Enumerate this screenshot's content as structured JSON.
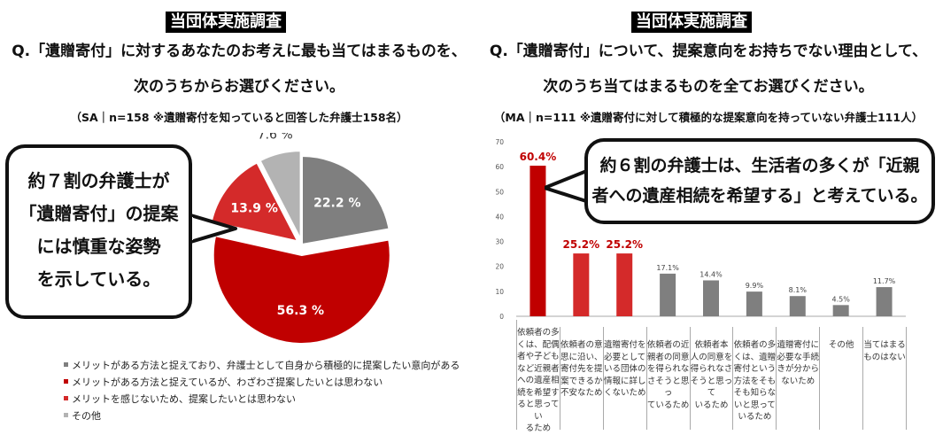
{
  "left": {
    "tag": "当団体実施調査",
    "question_line1": "Q.「遺贈寄付」に対するあなたのお考えに最も当てはまるものを、",
    "question_line2": "次のうちからお選びください。",
    "note": "（SA｜n=158 ※遺贈寄付を知っていると回答した弁護士158名）",
    "callout_lines": [
      "約７割の弁護士が",
      "「遺贈寄付」の提案",
      "には慎重な姿勢",
      "を示している。"
    ],
    "legend": [
      {
        "label": "メリットがある方法と捉えており、弁護士として自身から積極的に提案したい意向がある",
        "color": "#7f7f7f"
      },
      {
        "label": "メリットがある方法と捉えているが、わざわざ提案したいとは思わない",
        "color": "#c00000"
      },
      {
        "label": "メリットを感じないため、提案したいとは思わない",
        "color": "#d42a2a"
      },
      {
        "label": "その他",
        "color": "#b3b3b3"
      }
    ]
  },
  "right": {
    "tag": "当団体実施調査",
    "question_line1": "Q.「遺贈寄付」について、提案意向をお持ちでない理由として、",
    "question_line2": "次のうち当てはまるものを全てお選びください。",
    "note": "（MA｜n=111 ※遺贈寄付に対して積極的な提案意向を持っていない弁護士111人）",
    "callout_lines": [
      "約６割の弁護士は、生活者の多くが「近親",
      "者への遺産相続を希望する」と考えている。"
    ]
  },
  "chart_data": [
    {
      "type": "pie",
      "slices": [
        {
          "label": "メリットがある方法と捉えており、弁護士として自身から積極的に提案したい意向がある",
          "value": 22.2,
          "value_label": "22.2 %",
          "color": "#7f7f7f"
        },
        {
          "label": "メリットがある方法と捉えているが、わざわざ提案したいとは思わない",
          "value": 56.3,
          "value_label": "56.3 %",
          "color": "#c00000"
        },
        {
          "label": "メリットを感じないため、提案したいとは思わない",
          "value": 13.9,
          "value_label": "13.9 %",
          "color": "#d42a2a"
        },
        {
          "label": "その他",
          "value": 7.6,
          "value_label": "7.6 %",
          "color": "#b3b3b3"
        }
      ]
    },
    {
      "type": "bar",
      "ylim": [
        0,
        70
      ],
      "yticks": [
        "0",
        "10",
        "20",
        "30",
        "40",
        "50",
        "60",
        "70"
      ],
      "values": [
        60.4,
        25.2,
        25.2,
        17.1,
        14.4,
        9.9,
        8.1,
        4.5,
        11.7
      ],
      "value_labels": [
        "60.4%",
        "25.2%",
        "25.2%",
        "17.1%",
        "14.4%",
        "9.9%",
        "8.1%",
        "4.5%",
        "11.7%"
      ],
      "colors": [
        "#c00000",
        "#d42a2a",
        "#d42a2a",
        "#7f7f7f",
        "#7f7f7f",
        "#7f7f7f",
        "#7f7f7f",
        "#7f7f7f",
        "#7f7f7f"
      ],
      "highlight_labels": [
        true,
        true,
        true,
        false,
        false,
        false,
        false,
        false,
        false
      ],
      "categories": [
        [
          "依頼者の多",
          "くは、配偶",
          "者や子ども",
          "など近親者",
          "への遺産相",
          "続を希望す",
          "ると思ってい",
          "るため"
        ],
        [
          "依頼者の意",
          "思に沿い、",
          "寄付先を提",
          "案できるか",
          "不安なため"
        ],
        [
          "遺贈寄付を",
          "必要として",
          "いる団体の",
          "情報に詳し",
          "くないため"
        ],
        [
          "依頼者の近",
          "親者の同意",
          "を得られな",
          "さそうと思っ",
          "ているため"
        ],
        [
          "依頼者本",
          "人の同意を",
          "得られなさ",
          "そうと思って",
          "いるため"
        ],
        [
          "依頼者の多",
          "くは、遺贈",
          "寄付という",
          "方法をそも",
          "そも知らな",
          "いと思って",
          "いるため"
        ],
        [
          "遺贈寄付に",
          "必要な手続",
          "きが分から",
          "ないため"
        ],
        [
          "その他"
        ],
        [
          "当てはまる",
          "ものはない"
        ]
      ]
    }
  ]
}
